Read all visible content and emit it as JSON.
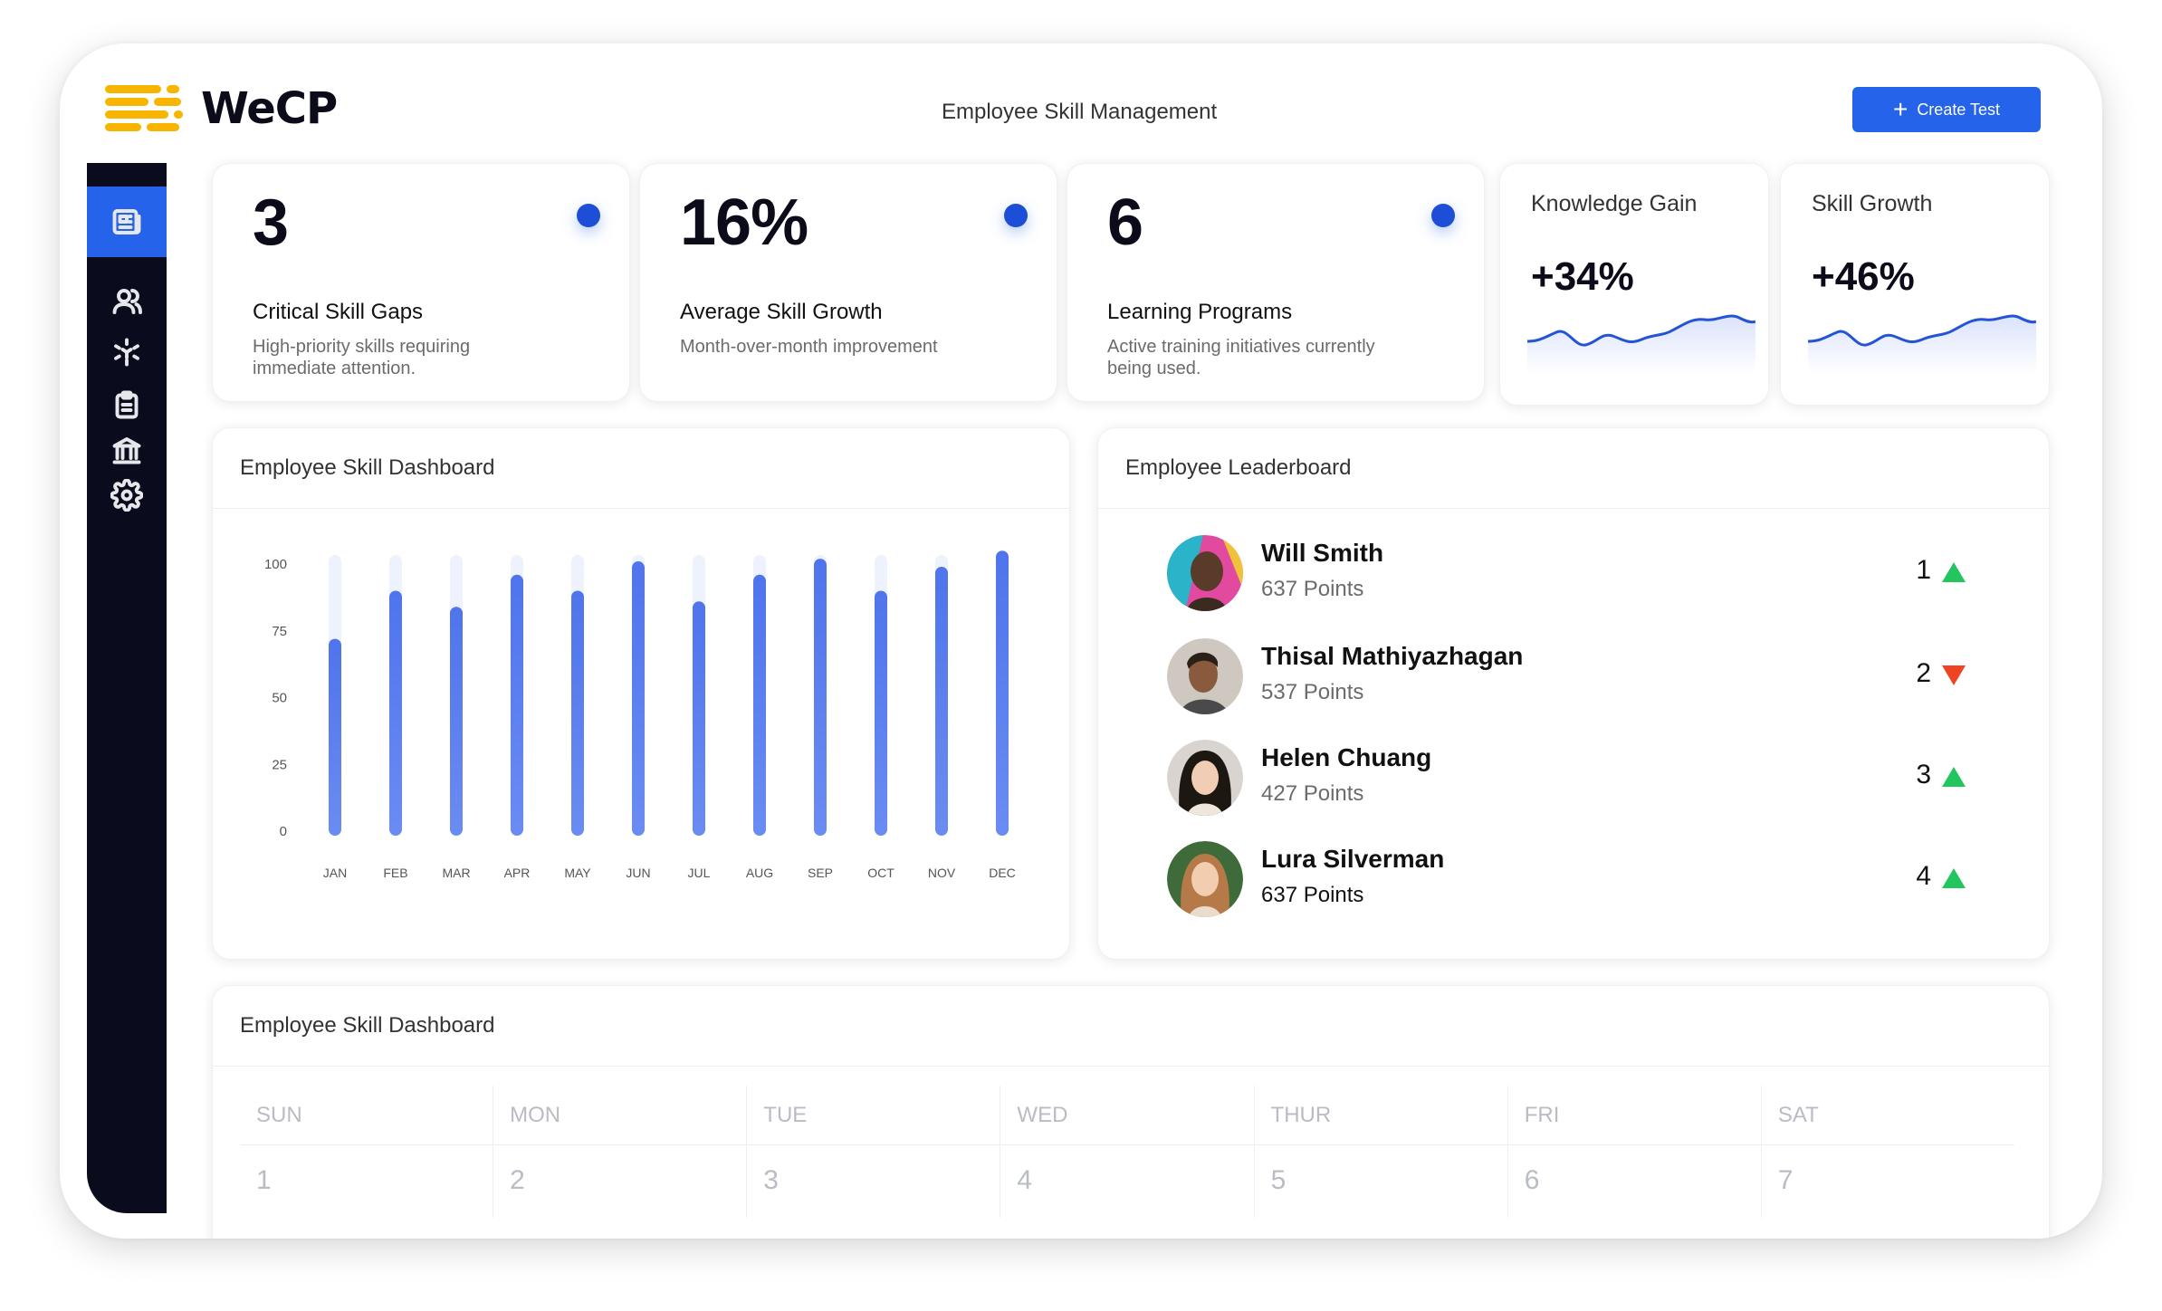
{
  "app": {
    "name": "WeCP",
    "page_title": "Employee Skill Management",
    "create_button": "Create Test"
  },
  "sidebar": {
    "items": [
      {
        "icon": "newspaper-icon",
        "active": true
      },
      {
        "icon": "users-icon",
        "active": false
      },
      {
        "icon": "cube-icon",
        "active": false
      },
      {
        "icon": "clipboard-icon",
        "active": false
      },
      {
        "icon": "bank-icon",
        "active": false
      },
      {
        "icon": "gear-icon",
        "active": false
      }
    ]
  },
  "stats": [
    {
      "value": "3",
      "title": "Critical Skill Gaps",
      "desc": "High-priority skills requiring immediate attention."
    },
    {
      "value": "16%",
      "title": "Average Skill Growth",
      "desc": "Month-over-month improvement"
    },
    {
      "value": "6",
      "title": "Learning Programs",
      "desc": "Active training initiatives currently being used."
    }
  ],
  "mini_cards": [
    {
      "title": "Knowledge Gain",
      "value": "+34%"
    },
    {
      "title": "Skill Growth",
      "value": "+46%"
    }
  ],
  "chart_panel": {
    "title": "Employee Skill Dashboard"
  },
  "chart_data": {
    "type": "bar",
    "title": "",
    "categories": [
      "JAN",
      "FEB",
      "MAR",
      "APR",
      "MAY",
      "JUN",
      "JUL",
      "AUG",
      "SEP",
      "OCT",
      "NOV",
      "DEC"
    ],
    "values": [
      72,
      90,
      84,
      96,
      90,
      101,
      86,
      96,
      102,
      90,
      99,
      105
    ],
    "yticks": [
      0,
      25,
      50,
      75,
      100
    ],
    "ylim": [
      0,
      110
    ],
    "grid": false,
    "colors": {
      "bar": "#5b7ef0",
      "track": "#eef2fd"
    }
  },
  "leaderboard": {
    "title": "Employee Leaderboard",
    "rows": [
      {
        "name": "Will Smith",
        "points": "637 Points",
        "rank": "1",
        "trend": "up"
      },
      {
        "name": "Thisal Mathiyazhagan",
        "points": "537 Points",
        "rank": "2",
        "trend": "down"
      },
      {
        "name": "Helen Chuang",
        "points": "427 Points",
        "rank": "3",
        "trend": "up"
      },
      {
        "name": "Lura Silverman",
        "points": "637 Points",
        "rank": "4",
        "trend": "up"
      }
    ]
  },
  "calendar": {
    "title": "Employee Skill Dashboard",
    "days": [
      "SUN",
      "MON",
      "TUE",
      "WED",
      "THUR",
      "FRI",
      "SAT"
    ],
    "dates": [
      "1",
      "2",
      "3",
      "4",
      "5",
      "6",
      "7"
    ]
  },
  "colors": {
    "accent": "#2563eb",
    "brand_yellow": "#f7b500",
    "sidebar": "#0a0c1d",
    "up": "#22c55e",
    "down": "#ef4423"
  }
}
